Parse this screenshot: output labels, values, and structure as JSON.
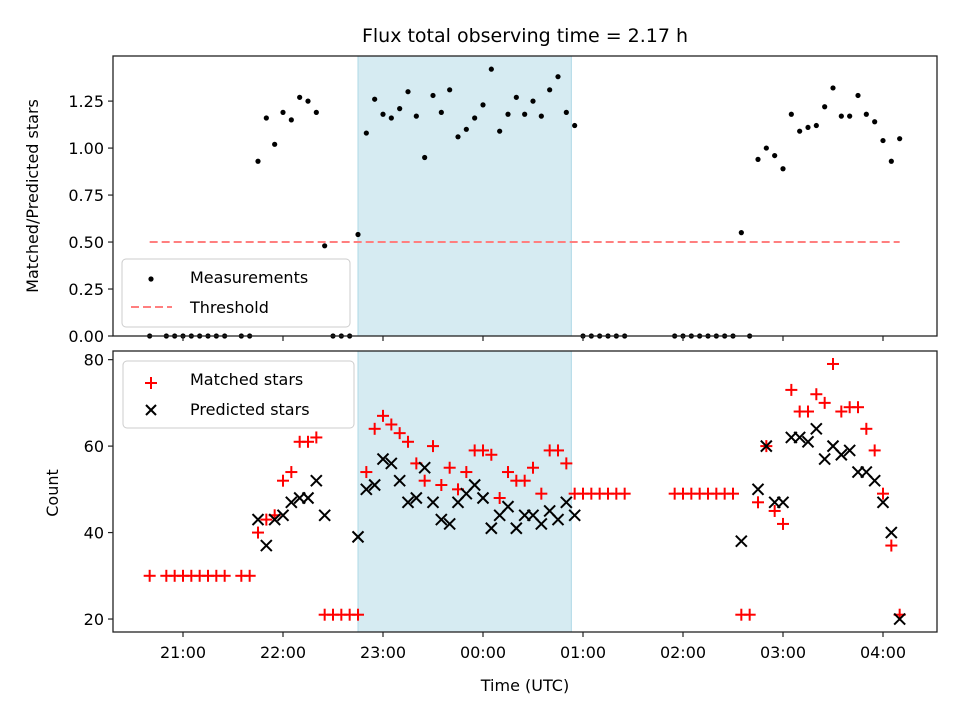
{
  "chart_data": [
    {
      "type": "scatter",
      "panel": "top",
      "title": "Flux total observing time = 2.17 h",
      "xlabel": "",
      "ylabel": "Matched/Predicted stars",
      "ylim": [
        0,
        1.49
      ],
      "xlim": [
        "20:23",
        "04:35"
      ],
      "yticks": [
        "0.00",
        "0.25",
        "0.50",
        "0.75",
        "1.00",
        "1.25"
      ],
      "ytick_values": [
        0,
        0.25,
        0.5,
        0.75,
        1.0,
        1.25
      ],
      "grid": false,
      "legend": {
        "placement": "lower-left",
        "entries": [
          "Measurements",
          "Threshold"
        ]
      },
      "threshold": {
        "name": "Threshold",
        "value": 0.5,
        "from": "20:40",
        "to": "04:10",
        "color": "#ff7f7f",
        "style": "dashed"
      },
      "highlight_span": {
        "from": "22:45",
        "to": "00:53",
        "color": "#add8e6"
      },
      "series": [
        {
          "name": "Measurements",
          "marker": "dot",
          "color": "#000000",
          "points": [
            [
              "20:40",
              0
            ],
            [
              "20:50",
              0
            ],
            [
              "20:55",
              0
            ],
            [
              "21:00",
              0
            ],
            [
              "21:05",
              0
            ],
            [
              "21:10",
              0
            ],
            [
              "21:15",
              0
            ],
            [
              "21:20",
              0
            ],
            [
              "21:25",
              0
            ],
            [
              "21:35",
              0
            ],
            [
              "21:40",
              0
            ],
            [
              "21:45",
              0.93
            ],
            [
              "21:50",
              1.16
            ],
            [
              "21:55",
              1.02
            ],
            [
              "22:00",
              1.19
            ],
            [
              "22:05",
              1.15
            ],
            [
              "22:10",
              1.27
            ],
            [
              "22:15",
              1.25
            ],
            [
              "22:20",
              1.19
            ],
            [
              "22:25",
              0.48
            ],
            [
              "22:30",
              0
            ],
            [
              "22:35",
              0
            ],
            [
              "22:40",
              0
            ],
            [
              "22:45",
              0.54
            ],
            [
              "22:50",
              1.08
            ],
            [
              "22:55",
              1.26
            ],
            [
              "23:00",
              1.18
            ],
            [
              "23:05",
              1.16
            ],
            [
              "23:10",
              1.21
            ],
            [
              "23:15",
              1.3
            ],
            [
              "23:20",
              1.17
            ],
            [
              "23:25",
              0.95
            ],
            [
              "23:30",
              1.28
            ],
            [
              "23:35",
              1.19
            ],
            [
              "23:40",
              1.31
            ],
            [
              "23:45",
              1.06
            ],
            [
              "23:50",
              1.1
            ],
            [
              "23:55",
              1.16
            ],
            [
              "00:00",
              1.23
            ],
            [
              "00:05",
              1.42
            ],
            [
              "00:10",
              1.09
            ],
            [
              "00:15",
              1.18
            ],
            [
              "00:20",
              1.27
            ],
            [
              "00:25",
              1.18
            ],
            [
              "00:30",
              1.25
            ],
            [
              "00:35",
              1.17
            ],
            [
              "00:40",
              1.31
            ],
            [
              "00:45",
              1.38
            ],
            [
              "00:50",
              1.19
            ],
            [
              "00:55",
              1.12
            ],
            [
              "01:00",
              0
            ],
            [
              "01:05",
              0
            ],
            [
              "01:10",
              0
            ],
            [
              "01:15",
              0
            ],
            [
              "01:20",
              0
            ],
            [
              "01:25",
              0
            ],
            [
              "01:55",
              0
            ],
            [
              "02:00",
              0
            ],
            [
              "02:05",
              0
            ],
            [
              "02:10",
              0
            ],
            [
              "02:15",
              0
            ],
            [
              "02:20",
              0
            ],
            [
              "02:25",
              0
            ],
            [
              "02:30",
              0
            ],
            [
              "02:35",
              0.55
            ],
            [
              "02:40",
              0
            ],
            [
              "02:45",
              0.94
            ],
            [
              "02:50",
              1.0
            ],
            [
              "02:55",
              0.96
            ],
            [
              "03:00",
              0.89
            ],
            [
              "03:05",
              1.18
            ],
            [
              "03:10",
              1.09
            ],
            [
              "03:15",
              1.11
            ],
            [
              "03:20",
              1.12
            ],
            [
              "03:25",
              1.22
            ],
            [
              "03:30",
              1.32
            ],
            [
              "03:35",
              1.17
            ],
            [
              "03:40",
              1.17
            ],
            [
              "03:45",
              1.28
            ],
            [
              "03:50",
              1.18
            ],
            [
              "03:55",
              1.14
            ],
            [
              "04:00",
              1.04
            ],
            [
              "04:05",
              0.93
            ],
            [
              "04:10",
              1.05
            ]
          ]
        }
      ]
    },
    {
      "type": "scatter",
      "panel": "bottom",
      "title": "",
      "xlabel": "Time (UTC)",
      "ylabel": "Count",
      "ylim": [
        17,
        82
      ],
      "xlim": [
        "20:23",
        "04:35"
      ],
      "yticks": [
        "20",
        "40",
        "60",
        "80"
      ],
      "ytick_values": [
        20,
        40,
        60,
        80
      ],
      "xticks": [
        "21:00",
        "22:00",
        "23:00",
        "00:00",
        "01:00",
        "02:00",
        "03:00",
        "04:00"
      ],
      "grid": false,
      "legend": {
        "placement": "upper-left",
        "entries": [
          "Matched stars",
          "Predicted stars"
        ]
      },
      "highlight_span": {
        "from": "22:45",
        "to": "00:53",
        "color": "#add8e6"
      },
      "series": [
        {
          "name": "Matched stars",
          "marker": "plus",
          "color": "#ff0000",
          "points": [
            [
              "20:40",
              30
            ],
            [
              "20:50",
              30
            ],
            [
              "20:55",
              30
            ],
            [
              "21:00",
              30
            ],
            [
              "21:05",
              30
            ],
            [
              "21:10",
              30
            ],
            [
              "21:15",
              30
            ],
            [
              "21:20",
              30
            ],
            [
              "21:25",
              30
            ],
            [
              "21:35",
              30
            ],
            [
              "21:40",
              30
            ],
            [
              "21:45",
              40
            ],
            [
              "21:50",
              43
            ],
            [
              "21:55",
              44
            ],
            [
              "22:00",
              52
            ],
            [
              "22:05",
              54
            ],
            [
              "22:10",
              61
            ],
            [
              "22:15",
              61
            ],
            [
              "22:20",
              62
            ],
            [
              "22:25",
              21
            ],
            [
              "22:30",
              21
            ],
            [
              "22:35",
              21
            ],
            [
              "22:40",
              21
            ],
            [
              "22:45",
              21
            ],
            [
              "22:50",
              54
            ],
            [
              "22:55",
              64
            ],
            [
              "23:00",
              67
            ],
            [
              "23:05",
              65
            ],
            [
              "23:10",
              63
            ],
            [
              "23:15",
              61
            ],
            [
              "23:20",
              56
            ],
            [
              "23:25",
              52
            ],
            [
              "23:30",
              60
            ],
            [
              "23:35",
              51
            ],
            [
              "23:40",
              55
            ],
            [
              "23:45",
              50
            ],
            [
              "23:50",
              54
            ],
            [
              "23:55",
              59
            ],
            [
              "00:00",
              59
            ],
            [
              "00:05",
              58
            ],
            [
              "00:10",
              48
            ],
            [
              "00:15",
              54
            ],
            [
              "00:20",
              52
            ],
            [
              "00:25",
              52
            ],
            [
              "00:30",
              55
            ],
            [
              "00:35",
              49
            ],
            [
              "00:40",
              59
            ],
            [
              "00:45",
              59
            ],
            [
              "00:50",
              56
            ],
            [
              "00:55",
              49
            ],
            [
              "01:00",
              49
            ],
            [
              "01:05",
              49
            ],
            [
              "01:10",
              49
            ],
            [
              "01:15",
              49
            ],
            [
              "01:20",
              49
            ],
            [
              "01:25",
              49
            ],
            [
              "01:55",
              49
            ],
            [
              "02:00",
              49
            ],
            [
              "02:05",
              49
            ],
            [
              "02:10",
              49
            ],
            [
              "02:15",
              49
            ],
            [
              "02:20",
              49
            ],
            [
              "02:25",
              49
            ],
            [
              "02:30",
              49
            ],
            [
              "02:35",
              21
            ],
            [
              "02:40",
              21
            ],
            [
              "02:45",
              47
            ],
            [
              "02:50",
              60
            ],
            [
              "02:55",
              45
            ],
            [
              "03:00",
              42
            ],
            [
              "03:05",
              73
            ],
            [
              "03:10",
              68
            ],
            [
              "03:15",
              68
            ],
            [
              "03:20",
              72
            ],
            [
              "03:25",
              70
            ],
            [
              "03:30",
              79
            ],
            [
              "03:35",
              68
            ],
            [
              "03:40",
              69
            ],
            [
              "03:45",
              69
            ],
            [
              "03:50",
              64
            ],
            [
              "03:55",
              59
            ],
            [
              "04:00",
              49
            ],
            [
              "04:05",
              37
            ],
            [
              "04:10",
              21
            ]
          ]
        },
        {
          "name": "Predicted stars",
          "marker": "x",
          "color": "#000000",
          "points": [
            [
              "21:45",
              43
            ],
            [
              "21:50",
              37
            ],
            [
              "21:55",
              43
            ],
            [
              "22:00",
              44
            ],
            [
              "22:05",
              47
            ],
            [
              "22:10",
              48
            ],
            [
              "22:15",
              48
            ],
            [
              "22:20",
              52
            ],
            [
              "22:25",
              44
            ],
            [
              "22:45",
              39
            ],
            [
              "22:50",
              50
            ],
            [
              "22:55",
              51
            ],
            [
              "23:00",
              57
            ],
            [
              "23:05",
              56
            ],
            [
              "23:10",
              52
            ],
            [
              "23:15",
              47
            ],
            [
              "23:20",
              48
            ],
            [
              "23:25",
              55
            ],
            [
              "23:30",
              47
            ],
            [
              "23:35",
              43
            ],
            [
              "23:40",
              42
            ],
            [
              "23:45",
              47
            ],
            [
              "23:50",
              49
            ],
            [
              "23:55",
              51
            ],
            [
              "00:00",
              48
            ],
            [
              "00:05",
              41
            ],
            [
              "00:10",
              44
            ],
            [
              "00:15",
              46
            ],
            [
              "00:20",
              41
            ],
            [
              "00:25",
              44
            ],
            [
              "00:30",
              44
            ],
            [
              "00:35",
              42
            ],
            [
              "00:40",
              45
            ],
            [
              "00:45",
              43
            ],
            [
              "00:50",
              47
            ],
            [
              "00:55",
              44
            ],
            [
              "02:35",
              38
            ],
            [
              "02:45",
              50
            ],
            [
              "02:50",
              60
            ],
            [
              "02:55",
              47
            ],
            [
              "03:00",
              47
            ],
            [
              "03:05",
              62
            ],
            [
              "03:10",
              62
            ],
            [
              "03:15",
              61
            ],
            [
              "03:20",
              64
            ],
            [
              "03:25",
              57
            ],
            [
              "03:30",
              60
            ],
            [
              "03:35",
              58
            ],
            [
              "03:40",
              59
            ],
            [
              "03:45",
              54
            ],
            [
              "03:50",
              54
            ],
            [
              "03:55",
              52
            ],
            [
              "04:00",
              47
            ],
            [
              "04:05",
              40
            ],
            [
              "04:10",
              20
            ]
          ]
        }
      ]
    }
  ]
}
